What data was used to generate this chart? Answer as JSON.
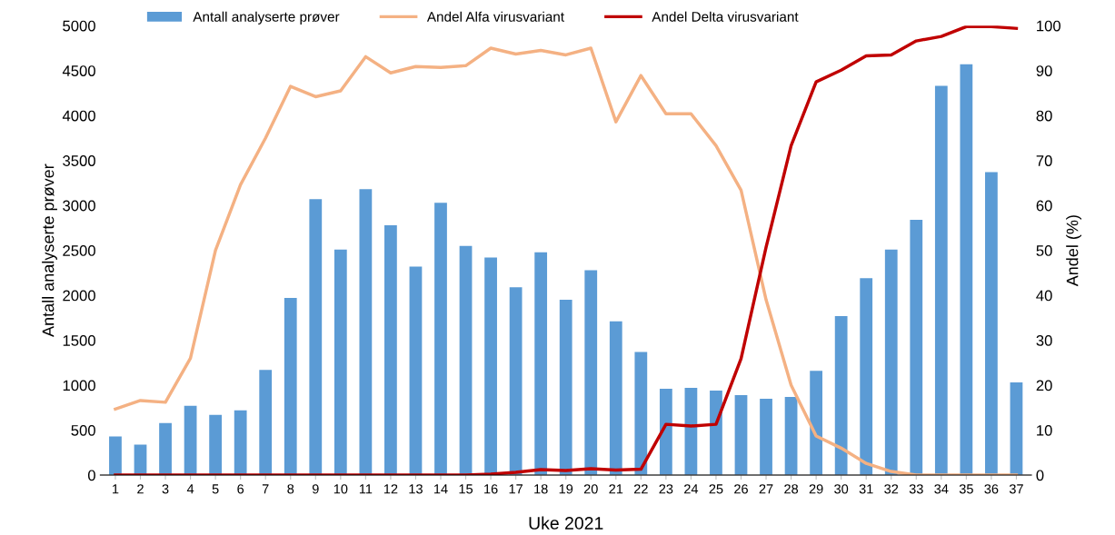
{
  "chart_data": {
    "type": "bar",
    "xlabel": "Uke 2021",
    "ylabel": "Antall analyserte prøver",
    "y2label": "Andel (%)",
    "categories": [
      "1",
      "2",
      "3",
      "4",
      "5",
      "6",
      "7",
      "8",
      "9",
      "10",
      "11",
      "12",
      "13",
      "14",
      "15",
      "16",
      "17",
      "18",
      "19",
      "20",
      "21",
      "22",
      "23",
      "24",
      "25",
      "26",
      "27",
      "28",
      "29",
      "30",
      "31",
      "32",
      "33",
      "34",
      "35",
      "36",
      "37"
    ],
    "series": [
      {
        "name": "Antall analyserte prøver",
        "color": "#5b9bd5",
        "values": [
          430,
          340,
          580,
          770,
          670,
          720,
          1170,
          1970,
          3070,
          2510,
          3180,
          2780,
          2320,
          3030,
          2550,
          2420,
          2090,
          2480,
          1950,
          2280,
          1710,
          1370,
          960,
          970,
          940,
          890,
          850,
          870,
          1160,
          1770,
          2190,
          2510,
          2840,
          4330,
          4570,
          3370,
          1030
        ]
      },
      {
        "name": "Andel Alfa virusvariant",
        "type": "line",
        "axis": "y2",
        "color": "#f4b183",
        "values": [
          14.7,
          16.6,
          16.2,
          26,
          50,
          64.6,
          75,
          86.5,
          84.2,
          85.5,
          93.1,
          89.5,
          90.9,
          90.7,
          91.1,
          95,
          93.7,
          94.5,
          93.5,
          95,
          78.6,
          88.9,
          80.4,
          80.4,
          73.3,
          63.4,
          39,
          20,
          8.7,
          6,
          2.6,
          0.8,
          0,
          0,
          0,
          0,
          0
        ]
      },
      {
        "name": "Andel Delta virusvariant",
        "type": "line",
        "axis": "y2",
        "color": "#c00000",
        "values": [
          0,
          0,
          0,
          0,
          0,
          0,
          0,
          0,
          0,
          0,
          0,
          0,
          0,
          0,
          0,
          0.2,
          0.6,
          1.2,
          1,
          1.4,
          1.1,
          1.3,
          11.3,
          10.9,
          11.3,
          25.9,
          50.7,
          73.3,
          87.5,
          90.1,
          93.3,
          93.5,
          96.6,
          97.6,
          99.8,
          99.8,
          99.4
        ]
      }
    ],
    "ylim": [
      0,
      5000
    ],
    "yticks": [
      0,
      500,
      1000,
      1500,
      2000,
      2500,
      3000,
      3500,
      4000,
      4500,
      5000
    ],
    "y2lim": [
      0,
      100
    ],
    "y2ticks": [
      0,
      10,
      20,
      30,
      40,
      50,
      60,
      70,
      80,
      90,
      100
    ],
    "grid": false,
    "legend": "top",
    "marker": "none",
    "line_style": "solid"
  }
}
